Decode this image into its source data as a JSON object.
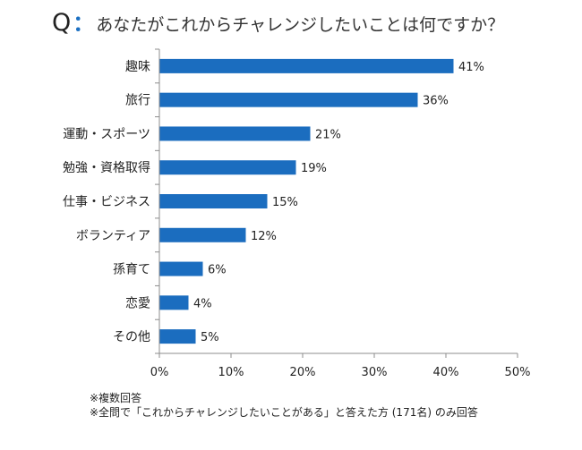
{
  "title": {
    "q": "Q",
    "colon": "：",
    "text": "あなたがこれからチャレンジしたいことは何ですか？"
  },
  "notes": [
    "※複数回答",
    "※全問で「これからチャレンジしたいことがある」と答えた方 (171名) のみ回答"
  ],
  "colors": {
    "bar": "#1b6dbf",
    "axis": "#8c8c8c",
    "accent": "#1a6fc2"
  },
  "chart_data": {
    "type": "bar",
    "orientation": "horizontal",
    "categories": [
      "趣味",
      "旅行",
      "運動・スポーツ",
      "勉強・資格取得",
      "仕事・ビジネス",
      "ボランティア",
      "孫育て",
      "恋愛",
      "その他"
    ],
    "values": [
      41,
      36,
      21,
      19,
      15,
      12,
      6,
      4,
      5
    ],
    "data_labels": [
      "41%",
      "36%",
      "21%",
      "19%",
      "15%",
      "12%",
      "6%",
      "4%",
      "5%"
    ],
    "xlim": [
      0,
      50
    ],
    "x_ticks": [
      0,
      10,
      20,
      30,
      40,
      50
    ],
    "x_tick_labels": [
      "0%",
      "10%",
      "20%",
      "30%",
      "40%",
      "50%"
    ],
    "grid": false
  }
}
